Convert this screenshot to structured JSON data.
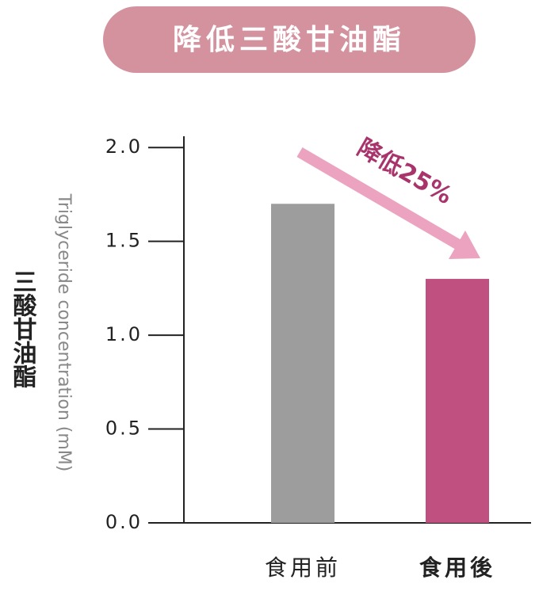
{
  "chart_data": {
    "type": "bar",
    "title": "降低三酸甘油酯",
    "ylabel": "Triglyceride concentration (mM)",
    "ylabel_title": "三酸甘油酯",
    "categories": [
      "食用前",
      "食用後"
    ],
    "values": [
      1.7,
      1.3
    ],
    "colors": [
      "#9d9d9e",
      "#c0507f"
    ],
    "annotation": "降低25%",
    "annotation_color": "#a8346b",
    "arrow_color": "#eba3c0",
    "ylim": [
      0,
      2.06
    ],
    "yticks": [
      {
        "value": 0,
        "label": "0.0"
      },
      0.5,
      {
        "value": 1,
        "label": "1.0"
      },
      1.5,
      {
        "value": 2,
        "label": "2.0"
      }
    ],
    "grid": false
  }
}
